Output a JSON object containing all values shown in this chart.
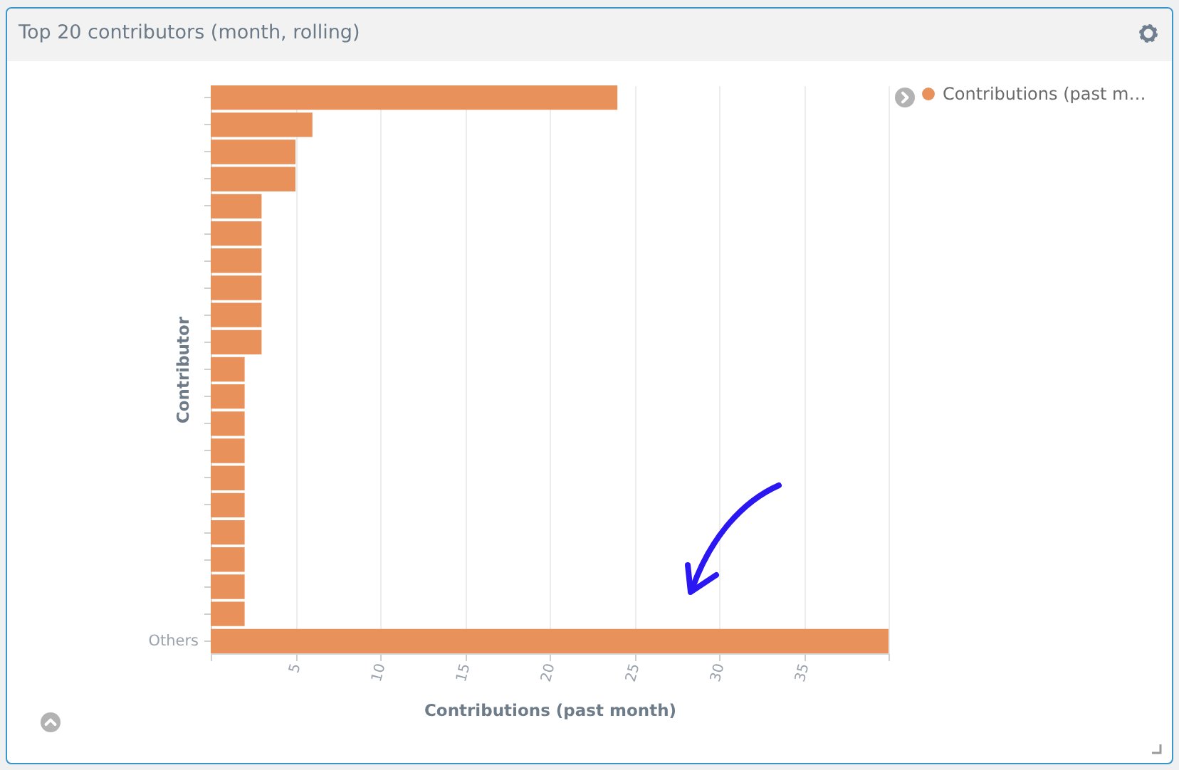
{
  "chart_data": {
    "type": "bar",
    "orientation": "horizontal",
    "title": "Top 20 contributors (month, rolling)",
    "xlabel": "Contributions (past month)",
    "ylabel": "Contributor",
    "categories": [
      null,
      null,
      null,
      null,
      null,
      null,
      null,
      null,
      null,
      null,
      null,
      null,
      null,
      null,
      null,
      null,
      null,
      null,
      null,
      null,
      "Others"
    ],
    "series": [
      {
        "name": "Contributions (past m…",
        "color": "#e8915a",
        "values": [
          24,
          6,
          5,
          5,
          3,
          3,
          3,
          3,
          3,
          3,
          2,
          2,
          2,
          2,
          2,
          2,
          2,
          2,
          2,
          2,
          40
        ]
      }
    ],
    "xlim": [
      0,
      40
    ],
    "xticks": [
      {
        "value": 0,
        "label": null
      },
      5,
      10,
      15,
      20,
      25,
      30,
      35,
      {
        "value": 40,
        "label": null
      }
    ],
    "grid": "x",
    "legend": "top right"
  }
}
